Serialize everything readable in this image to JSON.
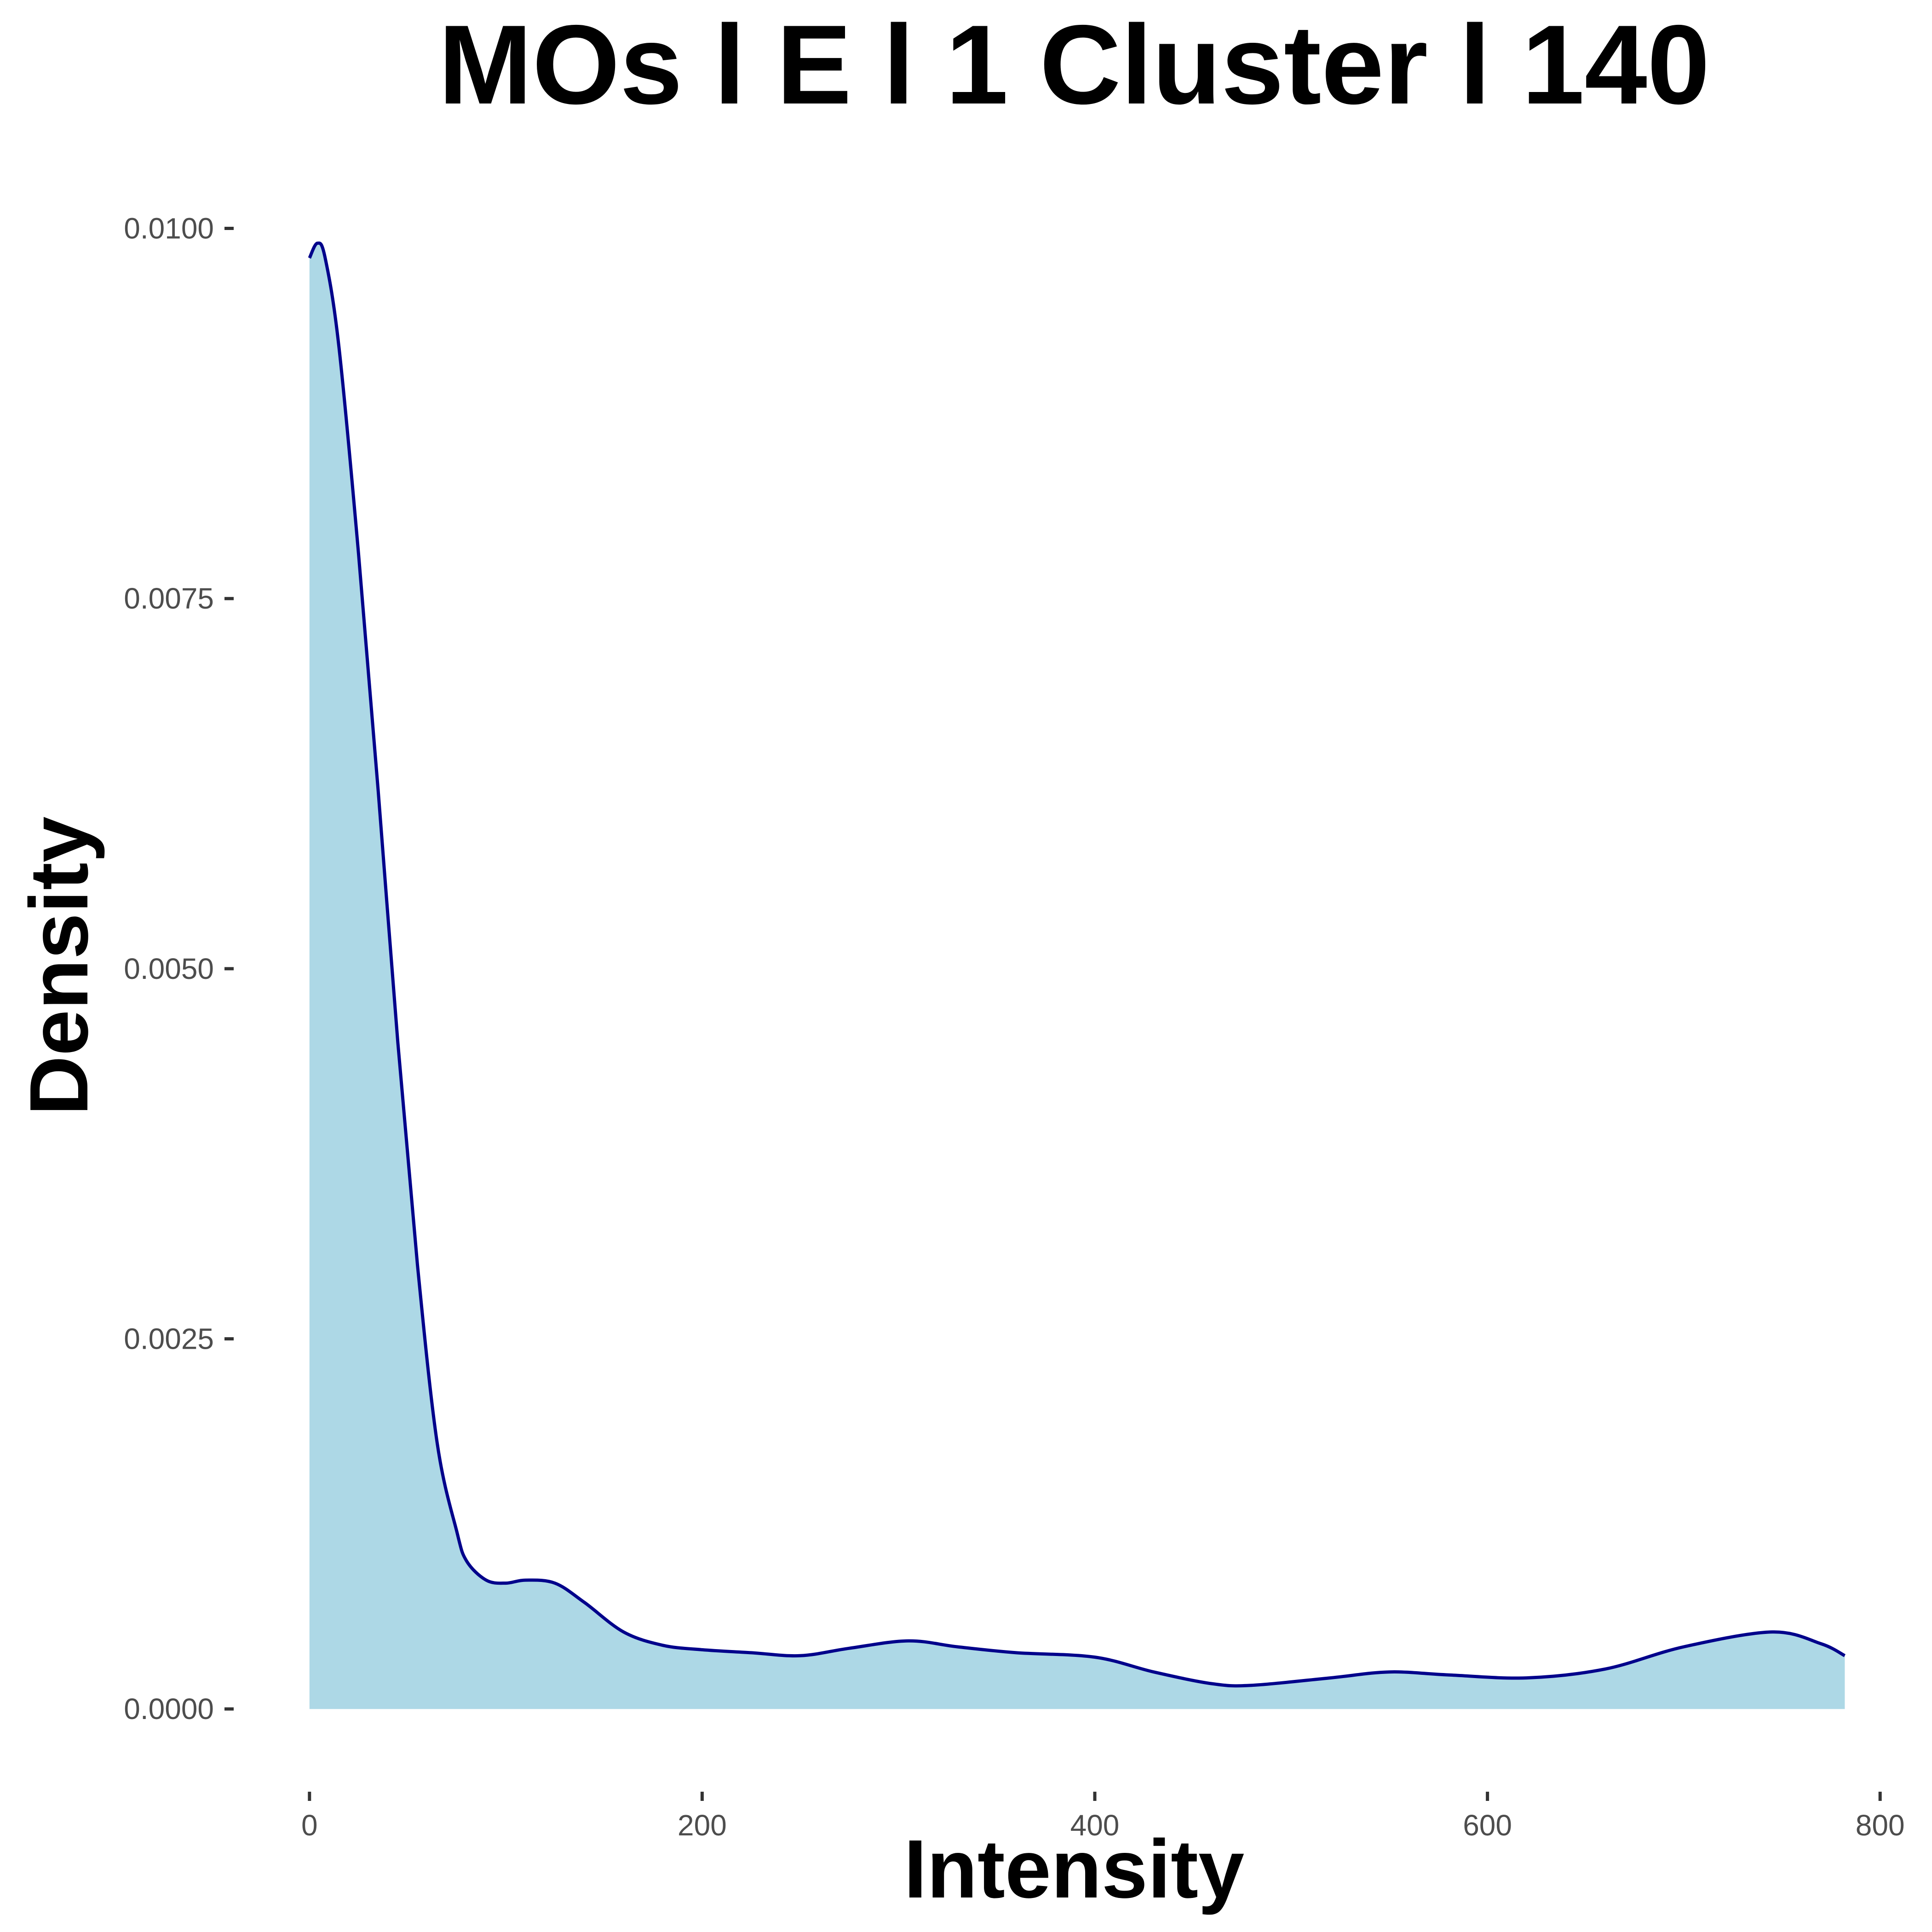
{
  "chart_data": {
    "type": "area",
    "title": "MOs l E l 1 Cluster l  140",
    "xlabel": "Intensity",
    "ylabel": "Density",
    "xlim": [
      -3,
      803
    ],
    "ylim": [
      -0.00045,
      0.0103
    ],
    "x_ticks": [
      0,
      200,
      400,
      600,
      800
    ],
    "x_tick_labels": [
      "0",
      "200",
      "400",
      "600",
      "800"
    ],
    "y_ticks": [
      0,
      0.0025,
      0.005,
      0.0075,
      0.01
    ],
    "y_tick_labels": [
      "0.0000",
      "0.0025",
      "0.0050",
      "0.0075",
      "0.0100"
    ],
    "grid": false,
    "fill_color": "#add8e6",
    "line_color": "#00008b",
    "series": [
      {
        "x": [
          0,
          4,
          8,
          15,
          25,
          35,
          45,
          55,
          65,
          75,
          80,
          90,
          100,
          110,
          125,
          140,
          160,
          180,
          200,
          225,
          250,
          275,
          305,
          330,
          360,
          400,
          430,
          460,
          480,
          520,
          550,
          580,
          620,
          660,
          700,
          745,
          770,
          782
        ],
        "y": [
          0.0098,
          0.0099,
          0.0098,
          0.0092,
          0.0078,
          0.0062,
          0.0045,
          0.003,
          0.0018,
          0.0012,
          0.001,
          0.00087,
          0.00085,
          0.00087,
          0.00085,
          0.00072,
          0.00052,
          0.00043,
          0.0004,
          0.00038,
          0.00036,
          0.00041,
          0.00046,
          0.00042,
          0.00038,
          0.00035,
          0.00025,
          0.00017,
          0.00016,
          0.00021,
          0.00025,
          0.00023,
          0.00021,
          0.00027,
          0.00042,
          0.00052,
          0.00044,
          0.00036
        ]
      }
    ]
  }
}
